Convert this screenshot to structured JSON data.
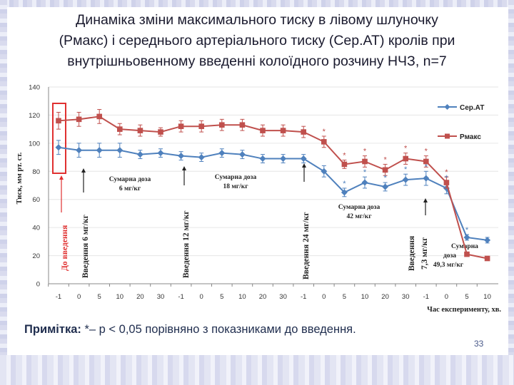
{
  "title": {
    "line1": "Динаміка зміни максимального тиску в лівому шлуночку",
    "line2": "(Рмакс) і середнього артеріального тиску (Сер.АТ) кролів при",
    "line3": "внутрішньовенному введенні колоїдного розчину НЧЗ, n=7"
  },
  "note": {
    "label": "Примітка:",
    "text": " *– р < 0,05 порівняно з показниками до введення."
  },
  "page_number": "33",
  "colors": {
    "sert": "#4f81bd",
    "pmax": "#c0504d",
    "box": "#e03030",
    "axis": "#888888",
    "grid": "#e6e6e6"
  },
  "chart_data": {
    "type": "line",
    "ylabel": "Тиск, мм рт. ст.",
    "xlabel": "Час експерименту, хв.",
    "ylim": [
      0,
      140
    ],
    "yticks": [
      0,
      20,
      40,
      60,
      80,
      100,
      120,
      140
    ],
    "categories": [
      "-1",
      "0",
      "5",
      "10",
      "20",
      "30",
      "-1",
      "0",
      "5",
      "10",
      "20",
      "30",
      "-1",
      "0",
      "5",
      "10",
      "20",
      "30",
      "-1",
      "0",
      "5",
      "10"
    ],
    "series": [
      {
        "name": "Сер.АТ",
        "marker": "diamond",
        "values": [
          97,
          95,
          95,
          95,
          92,
          93,
          91,
          90,
          93,
          92,
          89,
          89,
          89,
          80,
          65,
          72,
          69,
          74,
          75,
          68,
          33,
          31
        ],
        "errors": [
          5,
          5,
          5,
          5,
          3,
          3,
          3,
          3,
          3,
          3,
          3,
          3,
          3,
          4,
          3,
          4,
          3,
          4,
          5,
          4,
          2,
          2
        ]
      },
      {
        "name": "Рмакс",
        "marker": "square",
        "values": [
          116,
          117,
          119,
          110,
          109,
          108,
          112,
          112,
          113,
          113,
          109,
          109,
          108,
          101,
          85,
          87,
          81,
          89,
          87,
          72,
          21,
          18
        ],
        "errors": [
          6,
          5,
          5,
          4,
          4,
          3,
          4,
          4,
          4,
          4,
          4,
          4,
          4,
          4,
          3,
          4,
          4,
          4,
          4,
          4,
          1,
          1
        ]
      }
    ],
    "significance": {
      "pmax_star_indices": [
        13,
        14,
        15,
        16,
        17,
        18,
        19
      ],
      "sert_star_indices": [
        14,
        15,
        16,
        17,
        18,
        19,
        20
      ]
    },
    "legend_position": "right",
    "annotations": {
      "vertical": [
        "До введення",
        "Введення 6 мг/кг",
        "Введення 12 мг/кг",
        "Введення 24 мг/кг",
        "Введення",
        "7,3 мг/кг"
      ],
      "doses": [
        {
          "line1": "Сумарна доза",
          "line2": "6 мг/кг"
        },
        {
          "line1": "Сумарна доза",
          "line2": "18 мг/кг"
        },
        {
          "line1": "Сумарна доза",
          "line2": "42 мг/кг"
        },
        {
          "line1": "Сумарна",
          "line2": "доза",
          "line3": "49,3 мг/кг"
        }
      ]
    }
  }
}
